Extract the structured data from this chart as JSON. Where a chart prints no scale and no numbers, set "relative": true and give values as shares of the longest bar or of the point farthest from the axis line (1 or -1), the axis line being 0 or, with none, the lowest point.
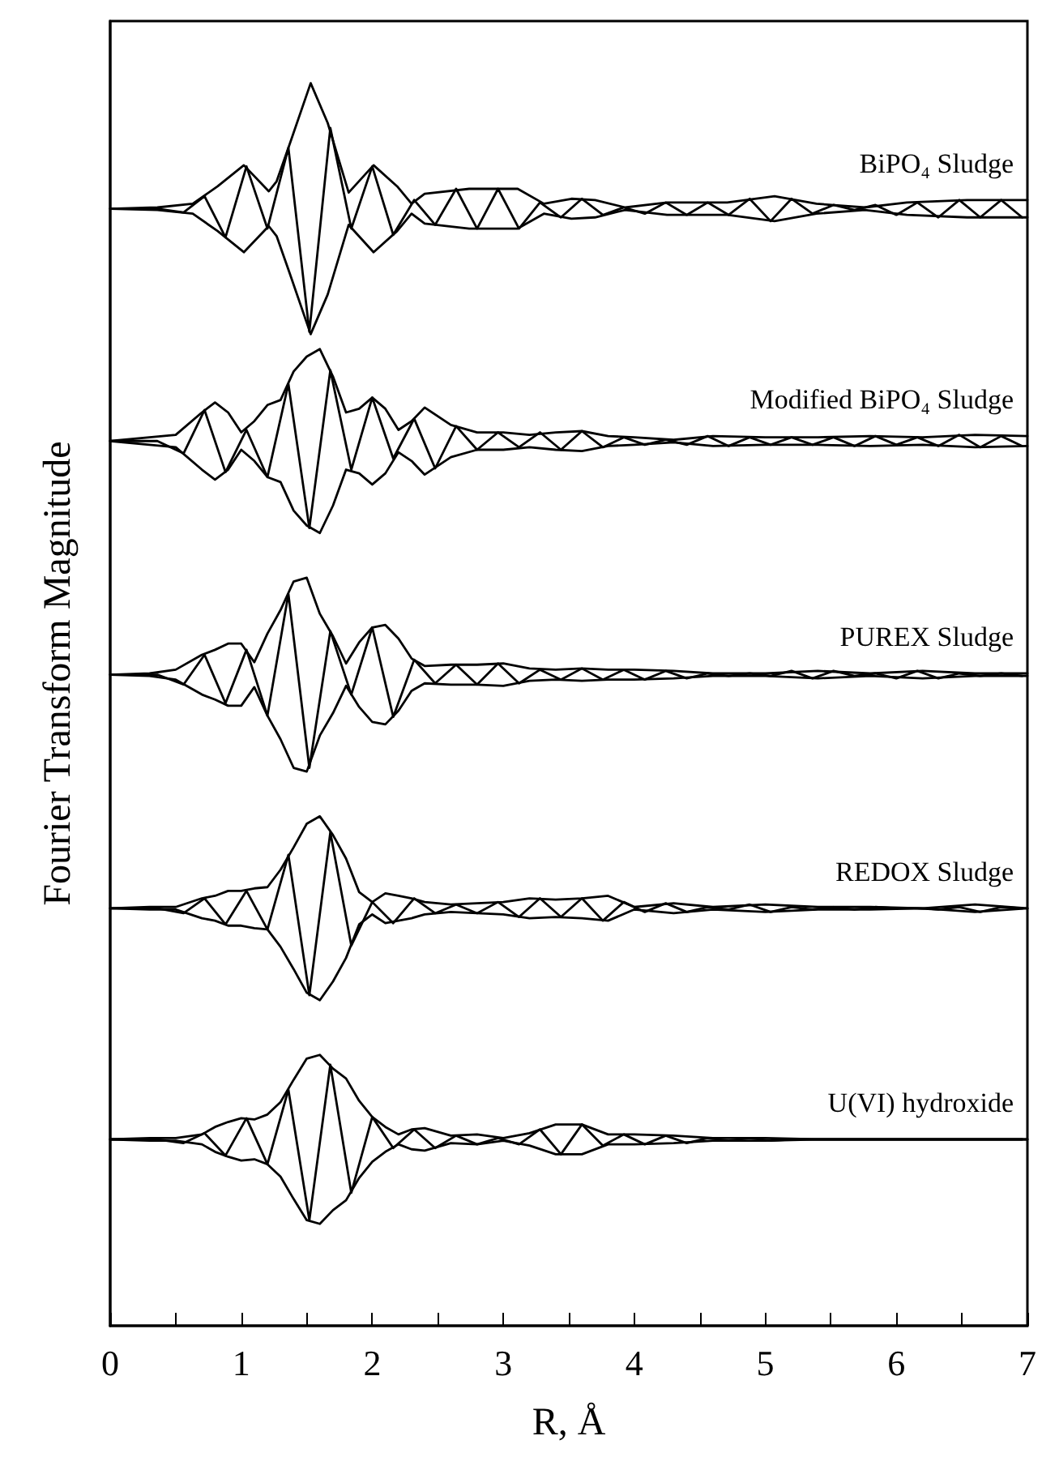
{
  "chart_data": {
    "type": "line",
    "relative": true,
    "xlabel": "R, Å",
    "ylabel": "Fourier Transform Magnitude",
    "xlim": [
      0,
      7
    ],
    "xticks": [
      0,
      {
        "value": 0.5,
        "label": null
      },
      1,
      {
        "value": 1.5,
        "label": null
      },
      2,
      {
        "value": 2.5,
        "label": null
      },
      3,
      {
        "value": 3.5,
        "label": null
      },
      4,
      {
        "value": 4.5,
        "label": null
      },
      5,
      {
        "value": 5.5,
        "label": null
      },
      6,
      {
        "value": 6.5,
        "label": null
      },
      7
    ],
    "marker": "none",
    "line_style": "solid",
    "series": [
      {
        "name": "BiPO₄ Sludge",
        "color": "#000000",
        "x": [
          0,
          0.36,
          0.63,
          0.82,
          1.02,
          1.21,
          1.27,
          1.37,
          1.53,
          1.66,
          1.82,
          2.01,
          2.19,
          2.3,
          2.4,
          2.74,
          3.11,
          3.31,
          3.52,
          3.7,
          3.93,
          4.25,
          4.71,
          5.07,
          5.39,
          5.76,
          6.08,
          6.54,
          7.0
        ],
        "values": [
          0.899,
          0.9,
          0.903,
          0.917,
          0.934,
          0.913,
          0.921,
          0.951,
          1.0,
          0.968,
          0.912,
          0.934,
          0.917,
          0.903,
          0.911,
          0.915,
          0.915,
          0.903,
          0.907,
          0.906,
          0.9,
          0.904,
          0.904,
          0.909,
          0.903,
          0.9,
          0.904,
          0.906,
          0.906
        ]
      },
      {
        "color": "#000000",
        "x": [
          0,
          0.36,
          0.63,
          0.82,
          1.02,
          1.21,
          1.27,
          1.37,
          1.53,
          1.66,
          1.82,
          2.01,
          2.19,
          2.3,
          2.4,
          2.74,
          3.11,
          3.31,
          3.52,
          3.7,
          3.93,
          4.25,
          4.71,
          5.07,
          5.39,
          5.76,
          6.08,
          6.54,
          7.0
        ],
        "values": [
          0.899,
          0.898,
          0.895,
          0.881,
          0.864,
          0.885,
          0.877,
          0.847,
          0.798,
          0.83,
          0.886,
          0.864,
          0.881,
          0.895,
          0.887,
          0.883,
          0.883,
          0.895,
          0.891,
          0.892,
          0.898,
          0.894,
          0.894,
          0.889,
          0.895,
          0.898,
          0.894,
          0.892,
          0.892
        ]
      },
      {
        "color": "#000000",
        "x": [
          0,
          0.36,
          0.56,
          0.72,
          0.88,
          1.04,
          1.2,
          1.36,
          1.52,
          1.68,
          1.84,
          2.0,
          2.16,
          2.32,
          2.48,
          2.64,
          2.8,
          2.96,
          3.12,
          3.28,
          3.44,
          3.6,
          3.76,
          3.92,
          4.08,
          4.24,
          4.4,
          4.56,
          4.72,
          4.88,
          5.04,
          5.2,
          5.36,
          5.52,
          5.68,
          5.84,
          6.0,
          6.16,
          6.32,
          6.48,
          6.64,
          6.8,
          6.96
        ],
        "values": [
          0.899,
          0.899,
          0.896,
          0.909,
          0.876,
          0.933,
          0.883,
          0.948,
          0.8,
          0.964,
          0.883,
          0.933,
          0.878,
          0.906,
          0.886,
          0.915,
          0.883,
          0.915,
          0.883,
          0.904,
          0.892,
          0.907,
          0.894,
          0.9,
          0.895,
          0.904,
          0.894,
          0.904,
          0.894,
          0.907,
          0.889,
          0.907,
          0.895,
          0.902,
          0.898,
          0.902,
          0.894,
          0.904,
          0.892,
          0.906,
          0.892,
          0.906,
          0.892
        ]
      },
      {
        "name": "Modified BiPO₄ Sludge",
        "color": "#000000",
        "x": [
          0,
          0.3,
          0.5,
          0.7,
          0.8,
          0.9,
          1.0,
          1.1,
          1.2,
          1.3,
          1.4,
          1.5,
          1.6,
          1.7,
          1.8,
          1.9,
          2.0,
          2.1,
          2.2,
          2.3,
          2.4,
          2.6,
          2.8,
          3.0,
          3.2,
          3.4,
          3.6,
          3.8,
          4.0,
          4.3,
          4.6,
          5.0,
          5.4,
          5.8,
          6.2,
          6.6,
          7.0
        ],
        "values": [
          0.712,
          0.715,
          0.717,
          0.735,
          0.743,
          0.735,
          0.719,
          0.728,
          0.741,
          0.745,
          0.768,
          0.78,
          0.786,
          0.764,
          0.735,
          0.738,
          0.747,
          0.738,
          0.721,
          0.728,
          0.739,
          0.725,
          0.719,
          0.719,
          0.717,
          0.719,
          0.72,
          0.716,
          0.715,
          0.713,
          0.716,
          0.715,
          0.715,
          0.716,
          0.715,
          0.717,
          0.716
        ]
      },
      {
        "color": "#000000",
        "x": [
          0,
          0.3,
          0.5,
          0.7,
          0.8,
          0.9,
          1.0,
          1.1,
          1.2,
          1.3,
          1.4,
          1.5,
          1.6,
          1.7,
          1.8,
          1.9,
          2.0,
          2.1,
          2.2,
          2.3,
          2.4,
          2.6,
          2.8,
          3.0,
          3.2,
          3.4,
          3.6,
          3.8,
          4.0,
          4.3,
          4.6,
          5.0,
          5.4,
          5.8,
          6.2,
          6.6,
          7.0
        ],
        "values": [
          0.712,
          0.709,
          0.707,
          0.689,
          0.681,
          0.689,
          0.705,
          0.696,
          0.683,
          0.679,
          0.656,
          0.644,
          0.638,
          0.66,
          0.689,
          0.686,
          0.677,
          0.686,
          0.703,
          0.696,
          0.685,
          0.699,
          0.705,
          0.705,
          0.707,
          0.705,
          0.704,
          0.708,
          0.709,
          0.711,
          0.708,
          0.709,
          0.709,
          0.708,
          0.709,
          0.707,
          0.708
        ]
      },
      {
        "color": "#000000",
        "x": [
          0,
          0.36,
          0.56,
          0.72,
          0.88,
          1.04,
          1.2,
          1.36,
          1.52,
          1.68,
          1.84,
          2.0,
          2.16,
          2.32,
          2.48,
          2.64,
          2.8,
          2.96,
          3.12,
          3.28,
          3.44,
          3.6,
          3.76,
          3.92,
          4.08,
          4.24,
          4.4,
          4.56,
          4.72,
          4.88,
          5.04,
          5.2,
          5.36,
          5.52,
          5.68,
          5.84,
          6.0,
          6.16,
          6.32,
          6.48,
          6.64,
          6.8,
          6.96
        ],
        "values": [
          0.712,
          0.712,
          0.702,
          0.737,
          0.687,
          0.721,
          0.683,
          0.758,
          0.642,
          0.769,
          0.689,
          0.747,
          0.698,
          0.73,
          0.69,
          0.724,
          0.705,
          0.719,
          0.707,
          0.719,
          0.705,
          0.72,
          0.707,
          0.715,
          0.709,
          0.713,
          0.709,
          0.716,
          0.708,
          0.715,
          0.709,
          0.715,
          0.709,
          0.715,
          0.708,
          0.716,
          0.709,
          0.715,
          0.708,
          0.717,
          0.707,
          0.716,
          0.708
        ]
      },
      {
        "name": "PUREX Sludge",
        "color": "#000000",
        "x": [
          0,
          0.3,
          0.5,
          0.7,
          0.8,
          0.9,
          1.0,
          1.1,
          1.2,
          1.3,
          1.4,
          1.5,
          1.6,
          1.7,
          1.8,
          1.9,
          2.0,
          2.1,
          2.2,
          2.3,
          2.4,
          2.6,
          2.8,
          3.0,
          3.2,
          3.4,
          3.6,
          3.8,
          4.0,
          4.3,
          4.6,
          5.0,
          5.4,
          5.8,
          6.2,
          6.6,
          7.0
        ],
        "values": [
          0.524,
          0.525,
          0.528,
          0.54,
          0.544,
          0.549,
          0.549,
          0.534,
          0.557,
          0.576,
          0.599,
          0.602,
          0.573,
          0.555,
          0.533,
          0.55,
          0.562,
          0.564,
          0.553,
          0.537,
          0.531,
          0.532,
          0.532,
          0.533,
          0.529,
          0.528,
          0.529,
          0.528,
          0.528,
          0.527,
          0.525,
          0.525,
          0.527,
          0.525,
          0.527,
          0.525,
          0.525
        ]
      },
      {
        "color": "#000000",
        "x": [
          0,
          0.3,
          0.5,
          0.7,
          0.8,
          0.9,
          1.0,
          1.1,
          1.2,
          1.3,
          1.4,
          1.5,
          1.6,
          1.7,
          1.8,
          1.9,
          2.0,
          2.1,
          2.2,
          2.3,
          2.4,
          2.6,
          2.8,
          3.0,
          3.2,
          3.4,
          3.6,
          3.8,
          4.0,
          4.3,
          4.6,
          5.0,
          5.4,
          5.8,
          6.2,
          6.6,
          7.0
        ],
        "values": [
          0.524,
          0.523,
          0.52,
          0.508,
          0.504,
          0.499,
          0.499,
          0.514,
          0.491,
          0.472,
          0.449,
          0.446,
          0.475,
          0.493,
          0.515,
          0.498,
          0.486,
          0.484,
          0.495,
          0.511,
          0.517,
          0.516,
          0.516,
          0.515,
          0.519,
          0.52,
          0.519,
          0.52,
          0.52,
          0.521,
          0.523,
          0.523,
          0.521,
          0.523,
          0.521,
          0.523,
          0.523
        ]
      },
      {
        "color": "#000000",
        "x": [
          0,
          0.36,
          0.56,
          0.72,
          0.88,
          1.04,
          1.2,
          1.36,
          1.52,
          1.68,
          1.84,
          2.0,
          2.16,
          2.32,
          2.48,
          2.64,
          2.8,
          2.96,
          3.12,
          3.28,
          3.44,
          3.6,
          3.76,
          3.92,
          4.08,
          4.24,
          4.4,
          4.56,
          4.72,
          4.88,
          5.04,
          5.2,
          5.36,
          5.52,
          5.68,
          5.84,
          6.0,
          6.16,
          6.32,
          6.48,
          6.64,
          6.8,
          6.96
        ],
        "values": [
          0.524,
          0.524,
          0.516,
          0.54,
          0.501,
          0.544,
          0.491,
          0.589,
          0.449,
          0.559,
          0.508,
          0.562,
          0.49,
          0.536,
          0.517,
          0.532,
          0.516,
          0.533,
          0.517,
          0.528,
          0.52,
          0.529,
          0.52,
          0.528,
          0.52,
          0.527,
          0.521,
          0.525,
          0.523,
          0.525,
          0.523,
          0.527,
          0.521,
          0.527,
          0.523,
          0.525,
          0.521,
          0.527,
          0.521,
          0.525,
          0.523,
          0.525,
          0.523
        ]
      },
      {
        "name": "REDOX Sludge",
        "color": "#000000",
        "x": [
          0,
          0.3,
          0.5,
          0.7,
          0.8,
          0.9,
          1.0,
          1.1,
          1.2,
          1.3,
          1.4,
          1.5,
          1.6,
          1.7,
          1.8,
          1.9,
          2.0,
          2.1,
          2.2,
          2.3,
          2.4,
          2.6,
          2.8,
          3.0,
          3.2,
          3.4,
          3.6,
          3.8,
          4.0,
          4.3,
          4.6,
          5.0,
          5.4,
          5.8,
          6.2,
          6.6,
          7.0
        ],
        "values": [
          0.336,
          0.337,
          0.337,
          0.344,
          0.346,
          0.35,
          0.35,
          0.352,
          0.353,
          0.367,
          0.385,
          0.404,
          0.41,
          0.395,
          0.376,
          0.349,
          0.341,
          0.348,
          0.346,
          0.344,
          0.341,
          0.339,
          0.34,
          0.341,
          0.344,
          0.343,
          0.344,
          0.346,
          0.337,
          0.34,
          0.337,
          0.339,
          0.337,
          0.337,
          0.336,
          0.339,
          0.336
        ]
      },
      {
        "color": "#000000",
        "x": [
          0,
          0.3,
          0.5,
          0.7,
          0.8,
          0.9,
          1.0,
          1.1,
          1.2,
          1.3,
          1.4,
          1.5,
          1.6,
          1.7,
          1.8,
          1.9,
          2.0,
          2.1,
          2.2,
          2.3,
          2.4,
          2.6,
          2.8,
          3.0,
          3.2,
          3.4,
          3.6,
          3.8,
          4.0,
          4.3,
          4.6,
          5.0,
          5.4,
          5.8,
          6.2,
          6.6,
          7.0
        ],
        "values": [
          0.336,
          0.335,
          0.335,
          0.328,
          0.326,
          0.322,
          0.322,
          0.32,
          0.319,
          0.305,
          0.287,
          0.268,
          0.262,
          0.277,
          0.296,
          0.323,
          0.331,
          0.324,
          0.326,
          0.328,
          0.331,
          0.333,
          0.332,
          0.331,
          0.328,
          0.329,
          0.328,
          0.326,
          0.335,
          0.332,
          0.335,
          0.333,
          0.335,
          0.335,
          0.336,
          0.333,
          0.336
        ]
      },
      {
        "color": "#000000",
        "x": [
          0,
          0.36,
          0.56,
          0.72,
          0.88,
          1.04,
          1.2,
          1.36,
          1.52,
          1.68,
          1.84,
          2.0,
          2.16,
          2.32,
          2.48,
          2.64,
          2.8,
          2.96,
          3.12,
          3.28,
          3.44,
          3.6,
          3.76,
          3.92,
          4.08,
          4.24,
          4.4,
          4.56,
          4.72,
          4.88,
          5.04,
          5.2,
          5.36,
          5.52,
          5.68,
          5.84,
          6.0,
          6.16,
          6.32,
          6.48,
          6.64,
          6.8,
          6.96
        ],
        "values": [
          0.336,
          0.336,
          0.332,
          0.344,
          0.323,
          0.35,
          0.319,
          0.379,
          0.266,
          0.397,
          0.306,
          0.341,
          0.324,
          0.344,
          0.332,
          0.339,
          0.332,
          0.341,
          0.329,
          0.344,
          0.329,
          0.344,
          0.326,
          0.341,
          0.333,
          0.34,
          0.333,
          0.337,
          0.335,
          0.339,
          0.333,
          0.337,
          0.335,
          0.337,
          0.335,
          0.337,
          0.336,
          0.336,
          0.335,
          0.337,
          0.333,
          0.337,
          0.336
        ]
      },
      {
        "name": "U(VI) hydroxide",
        "color": "#000000",
        "x": [
          0,
          0.3,
          0.5,
          0.7,
          0.8,
          0.9,
          1.0,
          1.1,
          1.2,
          1.3,
          1.4,
          1.5,
          1.6,
          1.7,
          1.8,
          1.9,
          2.0,
          2.1,
          2.2,
          2.3,
          2.4,
          2.6,
          2.8,
          3.0,
          3.2,
          3.4,
          3.6,
          3.8,
          4.0,
          4.3,
          4.6,
          5.0,
          5.4,
          5.8,
          6.2,
          6.6,
          7.0
        ],
        "values": [
          0.15,
          0.151,
          0.151,
          0.154,
          0.16,
          0.164,
          0.167,
          0.166,
          0.17,
          0.18,
          0.198,
          0.215,
          0.218,
          0.207,
          0.199,
          0.181,
          0.168,
          0.16,
          0.154,
          0.158,
          0.159,
          0.153,
          0.154,
          0.151,
          0.155,
          0.162,
          0.162,
          0.154,
          0.154,
          0.153,
          0.151,
          0.151,
          0.15,
          0.15,
          0.15,
          0.15,
          0.15
        ]
      },
      {
        "color": "#000000",
        "x": [
          0,
          0.3,
          0.5,
          0.7,
          0.8,
          0.9,
          1.0,
          1.1,
          1.2,
          1.3,
          1.4,
          1.5,
          1.6,
          1.7,
          1.8,
          1.9,
          2.0,
          2.1,
          2.2,
          2.3,
          2.4,
          2.6,
          2.8,
          3.0,
          3.2,
          3.4,
          3.6,
          3.8,
          4.0,
          4.3,
          4.6,
          5.0,
          5.4,
          5.8,
          6.2,
          6.6,
          7.0
        ],
        "values": [
          0.15,
          0.149,
          0.149,
          0.146,
          0.14,
          0.136,
          0.133,
          0.134,
          0.13,
          0.12,
          0.102,
          0.085,
          0.082,
          0.093,
          0.101,
          0.119,
          0.132,
          0.14,
          0.146,
          0.142,
          0.141,
          0.147,
          0.146,
          0.149,
          0.145,
          0.138,
          0.138,
          0.146,
          0.146,
          0.147,
          0.149,
          0.149,
          0.15,
          0.15,
          0.15,
          0.15,
          0.15
        ]
      },
      {
        "color": "#000000",
        "x": [
          0,
          0.36,
          0.56,
          0.72,
          0.88,
          1.04,
          1.2,
          1.36,
          1.52,
          1.68,
          1.84,
          2.0,
          2.16,
          2.32,
          2.48,
          2.64,
          2.8,
          2.96,
          3.12,
          3.28,
          3.44,
          3.6,
          3.76,
          3.92,
          4.08,
          4.24,
          4.4,
          4.56,
          4.72,
          4.88,
          5.04,
          5.2,
          5.36,
          5.52,
          5.68,
          5.84,
          6.0,
          6.16,
          6.32,
          6.48,
          6.64,
          6.8,
          6.96
        ],
        "values": [
          0.15,
          0.15,
          0.147,
          0.155,
          0.137,
          0.167,
          0.13,
          0.19,
          0.085,
          0.21,
          0.107,
          0.168,
          0.143,
          0.158,
          0.143,
          0.153,
          0.146,
          0.151,
          0.146,
          0.158,
          0.138,
          0.162,
          0.145,
          0.154,
          0.146,
          0.153,
          0.147,
          0.151,
          0.149,
          0.151,
          0.149,
          0.15,
          0.15,
          0.15,
          0.15,
          0.15,
          0.15,
          0.15,
          0.15,
          0.15,
          0.15,
          0.15,
          0.15
        ]
      }
    ]
  }
}
